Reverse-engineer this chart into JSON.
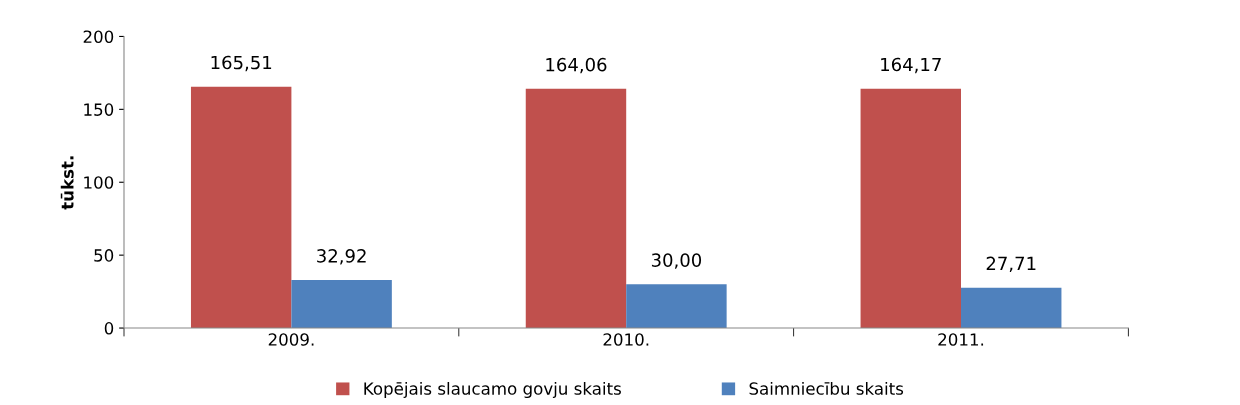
{
  "chart_data": {
    "type": "bar",
    "ylabel": "tūkst.",
    "categories": [
      "2009.",
      "2010.",
      "2011."
    ],
    "series": [
      {
        "name": "Kopējais slaucamo govju skaits",
        "color": "#c0504d",
        "values": [
          165.51,
          164.06,
          164.17
        ],
        "value_labels": [
          "165,51",
          "164,06",
          "164,17"
        ]
      },
      {
        "name": "Saimniecību skaits",
        "color": "#4f81bd",
        "values": [
          32.92,
          30.0,
          27.71
        ],
        "value_labels": [
          "32,92",
          "30,00",
          "27,71"
        ]
      }
    ],
    "ylim": [
      0,
      200
    ],
    "yticks": [
      0,
      50,
      100,
      150,
      200
    ],
    "grid": false,
    "legend": "bottom"
  }
}
